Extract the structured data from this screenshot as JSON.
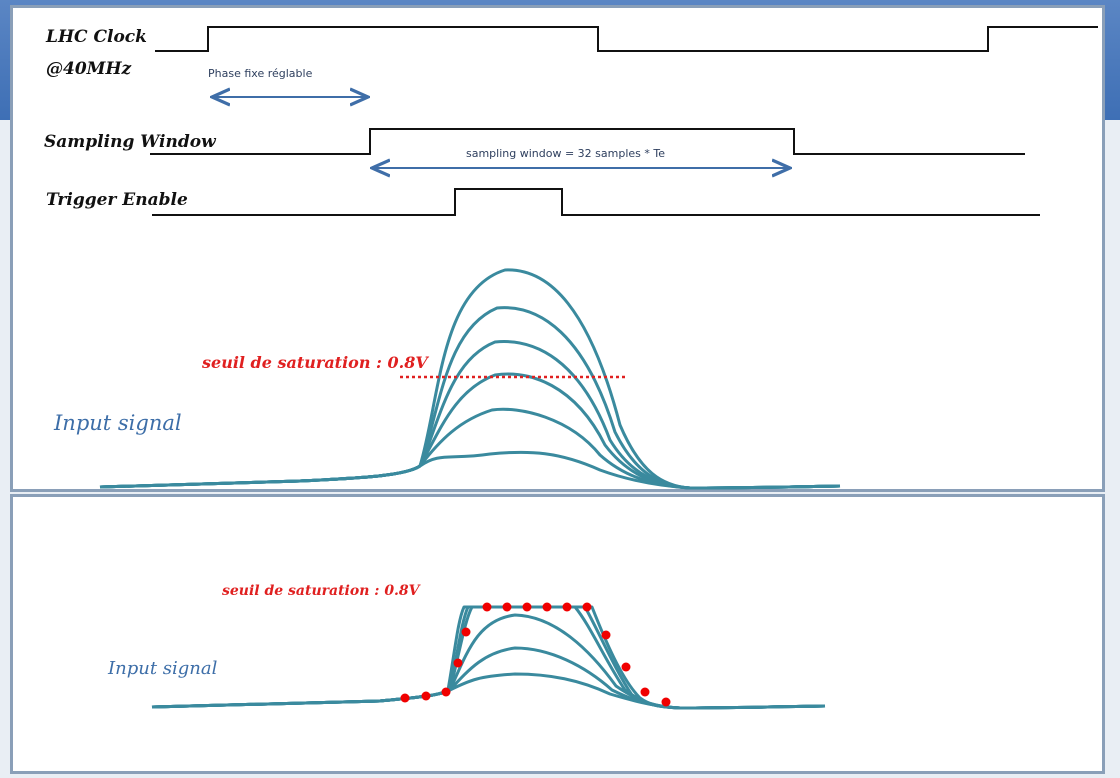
{
  "timing": {
    "clock_label_line1": "LHC Clock",
    "clock_label_line2": "@40MHz",
    "phase_note": "Phase fixe réglable",
    "sampling_label": "Sampling Window",
    "sampling_note": "sampling window = 32 samples * Te",
    "trigger_label": "Trigger Enable"
  },
  "top_plot": {
    "threshold_label": "seuil de saturation : 0.8V",
    "input_label": "Input signal"
  },
  "bottom_plot": {
    "threshold_label": "seuil de saturation : 0.8V",
    "input_label": "Input signal"
  },
  "colors": {
    "signal": "#3a8a9e",
    "threshold": "#e02020",
    "arrow": "#3f6ea8",
    "panel_border": "#8a9fb8",
    "slide_blue": "#4a78bc"
  }
}
